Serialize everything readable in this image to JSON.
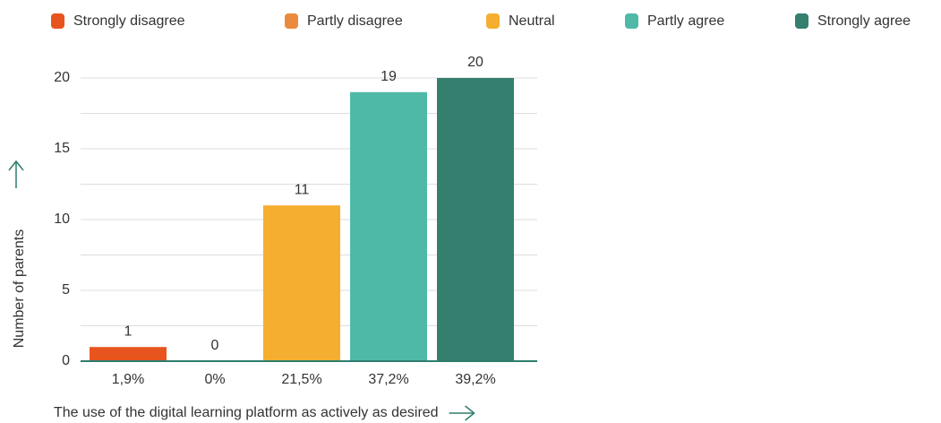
{
  "chart_data": {
    "type": "bar",
    "legend": [
      "Strongly disagree",
      "Partly disagree",
      "Neutral",
      "Partly agree",
      "Strongly agree"
    ],
    "colors": [
      "#e8541e",
      "#eb8a3c",
      "#f5ae2f",
      "#4fb9a8",
      "#357f6f"
    ],
    "categories": [
      "1,9%",
      "0%",
      "21,5%",
      "37,2%",
      "39,2%"
    ],
    "values": [
      1,
      0,
      11,
      19,
      20
    ],
    "ylim": [
      0,
      20
    ],
    "yticks": [
      0,
      5,
      10,
      15,
      20
    ],
    "minor_yticks": [
      2.5,
      7.5,
      12.5,
      17.5
    ],
    "grid": true,
    "xlabel": "The use of the digital learning platform as actively as desired",
    "ylabel": "Number of parents"
  }
}
